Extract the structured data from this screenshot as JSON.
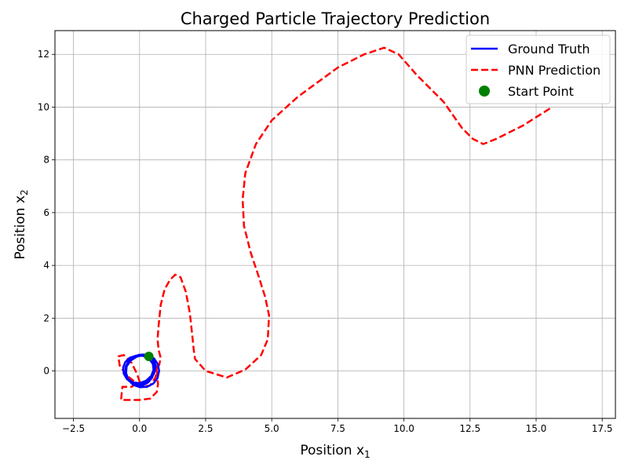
{
  "chart_data": {
    "type": "line",
    "title": "Charged Particle Trajectory Prediction",
    "xlabel": "Position x",
    "xlabel_sub": "1",
    "ylabel": "Position x",
    "ylabel_sub": "2",
    "xlim": [
      -3.2,
      18.0
    ],
    "ylim": [
      -1.8,
      12.9
    ],
    "xticks": [
      -2.5,
      0.0,
      2.5,
      5.0,
      7.5,
      10.0,
      12.5,
      15.0,
      17.5
    ],
    "xtick_labels": [
      "−2.5",
      "0.0",
      "2.5",
      "5.0",
      "7.5",
      "10.0",
      "12.5",
      "15.0",
      "17.5"
    ],
    "yticks": [
      0,
      2,
      4,
      6,
      8,
      10,
      12
    ],
    "ytick_labels": [
      "0",
      "2",
      "4",
      "6",
      "8",
      "10",
      "12"
    ],
    "grid": true,
    "legend_position": "top-right",
    "series": [
      {
        "name": "Ground Truth",
        "kind": "line",
        "style": "solid",
        "color": "#0000ff",
        "x": [
          0.35,
          0.49,
          0.56,
          0.56,
          0.48,
          0.33,
          0.14,
          -0.07,
          -0.27,
          -0.43,
          -0.51,
          -0.49,
          -0.38,
          -0.18,
          0.08,
          0.33,
          0.55,
          0.69,
          0.74,
          0.68,
          0.52,
          0.29,
          0.02,
          -0.24,
          -0.43,
          -0.52,
          -0.49,
          -0.34,
          -0.11,
          0.15,
          0.39,
          0.55,
          0.61,
          0.56,
          0.41,
          0.19,
          -0.06,
          -0.29,
          -0.48,
          -0.6,
          -0.62,
          -0.54,
          -0.37,
          -0.13,
          0.14,
          0.36,
          0.5,
          0.53,
          0.44,
          0.25,
          0.0,
          -0.24,
          -0.43,
          -0.53,
          -0.53,
          -0.43,
          -0.25,
          -0.03,
          0.19,
          0.35,
          0.44
        ],
        "y": [
          0.55,
          0.42,
          0.22,
          -0.02,
          -0.25,
          -0.43,
          -0.54,
          -0.56,
          -0.48,
          -0.31,
          -0.08,
          0.16,
          0.38,
          0.54,
          0.62,
          0.6,
          0.47,
          0.26,
          0.0,
          -0.27,
          -0.48,
          -0.6,
          -0.62,
          -0.53,
          -0.34,
          -0.09,
          0.17,
          0.39,
          0.54,
          0.6,
          0.55,
          0.4,
          0.18,
          -0.07,
          -0.3,
          -0.45,
          -0.51,
          -0.46,
          -0.31,
          -0.1,
          0.13,
          0.34,
          0.5,
          0.58,
          0.57,
          0.46,
          0.27,
          0.04,
          -0.19,
          -0.37,
          -0.46,
          -0.44,
          -0.31,
          -0.1,
          0.14,
          0.36,
          0.52,
          0.61,
          0.62,
          0.56,
          0.46
        ]
      },
      {
        "name": "PNN Prediction",
        "kind": "line",
        "style": "dashed",
        "color": "#ff0000",
        "x": [
          0.35,
          0.55,
          0.65,
          0.6,
          0.4,
          0.1,
          -0.2,
          -0.5,
          -0.75,
          -0.8,
          -0.6,
          -0.3,
          -0.1,
          0.0,
          -0.3,
          -0.65,
          -0.7,
          -0.4,
          0.0,
          0.4,
          0.65,
          0.7,
          0.65,
          0.75,
          0.8,
          0.72,
          0.68,
          0.72,
          0.8,
          0.95,
          1.15,
          1.35,
          1.55,
          1.75,
          1.9,
          2.0,
          2.05,
          2.1,
          2.5,
          3.3,
          4.0,
          4.6,
          4.85,
          4.9,
          4.75,
          4.5,
          4.2,
          3.95,
          3.9,
          4.0,
          4.4,
          5.0,
          6.0,
          7.5,
          8.5,
          9.25,
          9.8,
          10.5,
          11.5,
          12.2,
          12.6,
          13.0,
          13.5,
          14.5,
          15.6
        ],
        "y": [
          0.5,
          0.4,
          0.1,
          -0.25,
          -0.55,
          -0.6,
          -0.4,
          -0.15,
          0.2,
          0.55,
          0.6,
          0.3,
          -0.1,
          -0.4,
          -0.6,
          -0.6,
          -1.1,
          -1.1,
          -1.1,
          -1.05,
          -0.8,
          -0.5,
          0.0,
          0.25,
          0.5,
          0.8,
          1.2,
          1.7,
          2.5,
          3.1,
          3.45,
          3.65,
          3.55,
          3.0,
          2.2,
          1.3,
          0.8,
          0.45,
          0.0,
          -0.25,
          0.05,
          0.6,
          1.2,
          2.1,
          2.8,
          3.6,
          4.5,
          5.5,
          6.5,
          7.5,
          8.6,
          9.5,
          10.4,
          11.5,
          12.0,
          12.25,
          12.0,
          11.2,
          10.2,
          9.2,
          8.8,
          8.6,
          8.8,
          9.3,
          10.0
        ]
      },
      {
        "name": "Start Point",
        "kind": "scatter",
        "color": "#008000",
        "x": [
          0.35
        ],
        "y": [
          0.55
        ]
      }
    ]
  }
}
